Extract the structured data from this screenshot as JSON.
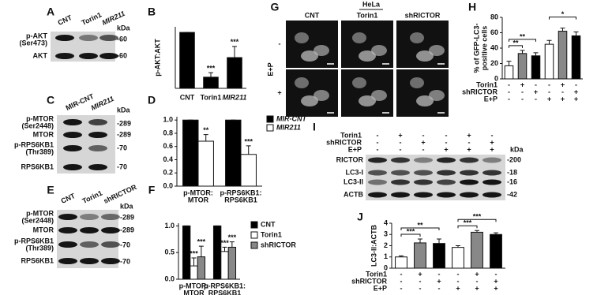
{
  "figure": {
    "panel_letters": [
      "A",
      "B",
      "C",
      "D",
      "E",
      "F",
      "G",
      "H",
      "I",
      "J"
    ],
    "blot_A": {
      "lanes": [
        "CNT",
        "Torin1",
        "MIR211"
      ],
      "rows": [
        "p-AKT",
        "(Ser473)",
        "AKT"
      ],
      "unit": "kDa",
      "sizes": [
        "-60",
        "-60"
      ]
    },
    "blot_C": {
      "lanes": [
        "MIR-CNT",
        "MIR211"
      ],
      "rows": [
        "p-MTOR",
        "(Ser2448)",
        "MTOR",
        "p-RPS6KB1",
        "(Thr389)",
        "RPS6KB1"
      ],
      "unit": "kDa",
      "sizes": [
        "-289",
        "-289",
        "-70",
        "-70"
      ]
    },
    "blot_E": {
      "lanes": [
        "CNT",
        "Torin1",
        "shRICTOR"
      ],
      "rows": [
        "p-MTOR",
        "(Ser2448)",
        "MTOR",
        "p-RPS6KB1",
        "(Thr389)",
        "RPS6KB1"
      ],
      "unit": "kDa",
      "sizes": [
        "-289",
        "-289",
        "-70",
        "-70"
      ]
    },
    "images_G": {
      "title": "HeLa",
      "columns": [
        "CNT",
        "Torin1",
        "shRICTOR"
      ],
      "rows": [
        "-",
        "+"
      ],
      "treatment": "E+P"
    },
    "blot_I": {
      "conditions": [
        {
          "label": "Torin1",
          "marks": [
            "-",
            "+",
            "-",
            "-",
            "+",
            "-"
          ]
        },
        {
          "label": "shRICTOR",
          "marks": [
            "-",
            "-",
            "+",
            "-",
            "-",
            "+"
          ]
        },
        {
          "label": "E+P",
          "marks": [
            "-",
            "-",
            "-",
            "+",
            "+",
            "+"
          ]
        }
      ],
      "rows": [
        "RICTOR",
        "LC3-I",
        "LC3-II",
        "ACTB"
      ],
      "unit": "kDa",
      "sizes": [
        "-200",
        "-18",
        "-16",
        "-42"
      ]
    }
  },
  "chart_data": [
    {
      "type": "bar",
      "ylabel": [
        "p-AKT:AKT"
      ],
      "categories": [
        "CNT",
        "Torin1",
        "MIR211"
      ],
      "values": [
        1,
        0.2,
        0.55
      ],
      "errors": [
        0,
        0.08,
        0.2
      ],
      "colors": [
        "#000000",
        "#000000",
        "#000000"
      ],
      "ylim": [
        0,
        1.1
      ],
      "annotations": [
        "***",
        "***"
      ]
    },
    {
      "type": "grouped-bar",
      "categories": [
        [
          "p-MTOR:",
          "MTOR"
        ],
        [
          "p-RPS6KB1:",
          "RPS6KB1"
        ]
      ],
      "series": [
        {
          "name": "MIR-CNT",
          "color": "#000000",
          "values": [
            1,
            1
          ],
          "errors": [
            0,
            0
          ]
        },
        {
          "name": "MIR211",
          "color": "#ffffff",
          "values": [
            0.68,
            0.48
          ],
          "errors": [
            0.1,
            0.13
          ]
        }
      ],
      "ylim": [
        0,
        1.05
      ],
      "yticks": [
        {
          "value": 0,
          "label": "0.0"
        },
        {
          "value": 0.2,
          "label": "0.2"
        },
        {
          "value": 0.4,
          "label": "0.4"
        },
        {
          "value": 0.6,
          "label": "0.6"
        },
        {
          "value": 0.8,
          "label": "0.8"
        },
        {
          "value": 1,
          "label": "1.0"
        }
      ],
      "annotations": [
        "**",
        "***"
      ]
    },
    {
      "type": "grouped-bar",
      "categories": [
        [
          "p-MTOR:",
          "MTOR"
        ],
        [
          "p-RPS6KB1:",
          "RPS6KB1"
        ]
      ],
      "series": [
        {
          "name": "CNT",
          "color": "#000000",
          "values": [
            1,
            1
          ],
          "errors": [
            0,
            0
          ]
        },
        {
          "name": "Torin1",
          "color": "#ffffff",
          "values": [
            0.25,
            0.52
          ],
          "errors": [
            0.15,
            0.08
          ]
        },
        {
          "name": "shRICTOR",
          "color": "#888888",
          "values": [
            0.42,
            0.6
          ],
          "errors": [
            0.2,
            0.1
          ]
        }
      ],
      "ylim": [
        0,
        1.05
      ],
      "yticks": [
        {
          "value": 0,
          "label": "0.0"
        },
        {
          "value": 0.5,
          "label": "0.5"
        },
        {
          "value": 1,
          "label": "1.0"
        }
      ],
      "annotations": [
        "***",
        "***",
        "***",
        "***"
      ]
    },
    {
      "type": "bar",
      "ylabel": [
        "% of GFP-LC3-",
        "positive cells"
      ],
      "values": [
        17,
        33,
        30,
        45,
        62,
        56
      ],
      "errors": [
        6,
        4,
        4,
        5,
        4,
        5
      ],
      "colors": [
        "#ffffff",
        "#888888",
        "#000000",
        "#ffffff",
        "#888888",
        "#000000"
      ],
      "ylim": [
        0,
        80
      ],
      "yticks": [
        0,
        20,
        40,
        60,
        80
      ],
      "annotations": [
        "**",
        "**",
        "*"
      ],
      "conditions": [
        {
          "label": "Torin1",
          "marks": [
            "-",
            "+",
            "-",
            "-",
            "+",
            "-"
          ]
        },
        {
          "label": "shRICTOR",
          "marks": [
            "-",
            "-",
            "+",
            "-",
            "-",
            "+"
          ]
        },
        {
          "label": "E+P",
          "marks": [
            "-",
            "-",
            "-",
            "+",
            "+",
            "+"
          ]
        }
      ]
    },
    {
      "type": "bar",
      "ylabel": [
        "LC3-II:ACTB"
      ],
      "values": [
        1,
        2.25,
        2.2,
        1.85,
        3.2,
        3
      ],
      "errors": [
        0.1,
        0.35,
        0.4,
        0.15,
        0.15,
        0.15
      ],
      "colors": [
        "#ffffff",
        "#888888",
        "#000000",
        "#ffffff",
        "#888888",
        "#000000"
      ],
      "ylim": [
        0,
        4
      ],
      "yticks": [
        0,
        1,
        2,
        3,
        4
      ],
      "annotations": [
        "***",
        "**",
        "***",
        "***"
      ],
      "conditions": [
        {
          "label": "Torin1",
          "marks": [
            "-",
            "+",
            "-",
            "-",
            "+",
            "-"
          ]
        },
        {
          "label": "shRICTOR",
          "marks": [
            "-",
            "-",
            "+",
            "-",
            "-",
            "+"
          ]
        },
        {
          "label": "E+P",
          "marks": [
            "-",
            "-",
            "-",
            "+",
            "+",
            "+"
          ]
        }
      ]
    }
  ]
}
